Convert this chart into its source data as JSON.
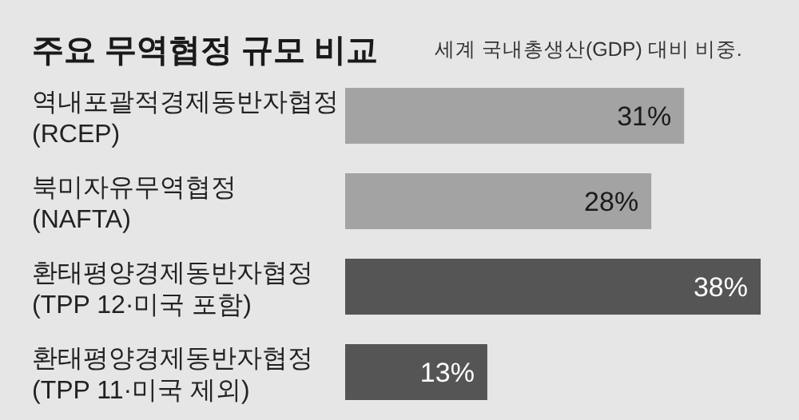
{
  "chart_data": {
    "type": "bar",
    "orientation": "horizontal",
    "title": "주요 무역협정 규모 비교",
    "subtitle": "세계 국내총생산(GDP) 대비 비중.",
    "categories": [
      "역내포괄적경제동반자협정\n(RCEP)",
      "북미자유무역협정\n(NAFTA)",
      "환태평양경제동반자협정\n(TPP 12·미국 포함)",
      "환태평양경제동반자협정\n(TPP 11·미국 제외)"
    ],
    "values": [
      31,
      28,
      38,
      13
    ],
    "colors": [
      "#a3a3a3",
      "#a3a3a3",
      "#555555",
      "#555555"
    ],
    "value_labels": [
      "31%",
      "28%",
      "38%",
      "13%"
    ]
  }
}
